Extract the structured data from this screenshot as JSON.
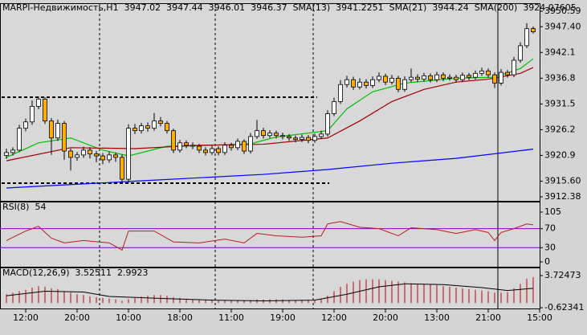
{
  "chart_data": [
    {
      "type": "candlestick",
      "title": "MARPI-Недвижимость,H1",
      "quote": [
        3947.02,
        3947.44,
        3946.01,
        3946.37
      ],
      "quote_color": "#000080",
      "up_color": "#ffffff",
      "down_color": "#ffb000",
      "open": [
        3920.9,
        3921.5,
        3922.0,
        3926.5,
        3927.8,
        3931.0,
        3932.5,
        3928.0,
        3924.5,
        3927.5,
        3921.8,
        3920.5,
        3921.0,
        3922.0,
        3921.2,
        3920.8,
        3920.0,
        3921.0,
        3920.5,
        3916.0,
        3926.5,
        3926.0,
        3927.0,
        3926.5,
        3928.0,
        3927.5,
        3926.0,
        3922.0,
        3923.5,
        3923.0,
        3922.8,
        3922.0,
        3921.5,
        3922.3,
        3921.5,
        3923.0,
        3922.5,
        3923.8,
        3921.8,
        3924.8,
        3926.0,
        3925.0,
        3925.5,
        3925.0,
        3924.8,
        3924.5,
        3924.2,
        3924.6,
        3924.0,
        3924.8,
        3925.3,
        3929.5,
        3932.0,
        3935.5,
        3936.5,
        3935.0,
        3936.0,
        3935.3,
        3936.5,
        3937.2,
        3936.0,
        3936.8,
        3934.5,
        3936.5,
        3937.0,
        3936.6,
        3937.3,
        3936.5,
        3937.5,
        3936.8,
        3937.0,
        3936.5,
        3937.4,
        3937.0,
        3937.8,
        3938.3,
        3937.5,
        3935.8,
        3938.0,
        3937.5,
        3940.5,
        3943.5,
        3947.02
      ],
      "high": [
        3922.3,
        3922.6,
        3927.2,
        3928.5,
        3932.2,
        3933.0,
        3932.9,
        3928.6,
        3928.3,
        3928.0,
        3922.3,
        3921.6,
        3922.7,
        3922.6,
        3921.8,
        3921.4,
        3921.7,
        3921.5,
        3921.1,
        3927.3,
        3927.4,
        3927.6,
        3927.7,
        3929.6,
        3928.8,
        3928.0,
        3926.4,
        3924.1,
        3924.0,
        3923.6,
        3923.3,
        3922.6,
        3922.9,
        3922.8,
        3923.6,
        3923.5,
        3924.4,
        3924.2,
        3925.5,
        3928.2,
        3926.6,
        3926.1,
        3926.0,
        3925.6,
        3925.3,
        3925.0,
        3925.2,
        3925.1,
        3925.4,
        3926.0,
        3930.2,
        3932.8,
        3936.4,
        3937.3,
        3937.1,
        3936.8,
        3936.6,
        3937.2,
        3938.0,
        3937.7,
        3937.5,
        3937.3,
        3937.2,
        3938.8,
        3937.6,
        3937.9,
        3937.8,
        3938.1,
        3938.0,
        3937.6,
        3937.5,
        3938.0,
        3937.9,
        3938.4,
        3939.0,
        3938.8,
        3938.0,
        3938.7,
        3938.5,
        3941.2,
        3944.2,
        3948.1,
        3947.44
      ],
      "low": [
        3920.2,
        3920.9,
        3921.6,
        3925.9,
        3927.2,
        3930.4,
        3927.4,
        3921.0,
        3923.9,
        3920.0,
        3917.8,
        3919.8,
        3920.4,
        3920.3,
        3919.5,
        3919.1,
        3919.4,
        3919.6,
        3915.4,
        3915.3,
        3925.3,
        3925.4,
        3925.8,
        3926.0,
        3926.9,
        3925.4,
        3921.4,
        3921.5,
        3922.4,
        3922.2,
        3921.4,
        3920.9,
        3921.0,
        3920.9,
        3921.0,
        3921.9,
        3922.0,
        3921.2,
        3921.3,
        3924.3,
        3924.4,
        3924.5,
        3924.4,
        3924.2,
        3923.9,
        3923.6,
        3923.7,
        3923.4,
        3923.5,
        3924.3,
        3924.8,
        3929.0,
        3931.5,
        3934.9,
        3934.4,
        3934.5,
        3934.7,
        3934.8,
        3936.0,
        3935.4,
        3935.5,
        3933.9,
        3934.0,
        3936.0,
        3936.0,
        3936.1,
        3935.9,
        3936.0,
        3936.2,
        3936.3,
        3935.9,
        3936.0,
        3936.4,
        3936.5,
        3937.3,
        3936.9,
        3934.8,
        3935.3,
        3936.9,
        3937.0,
        3940.0,
        3943.0,
        3946.01
      ],
      "close": [
        3921.5,
        3922.0,
        3926.5,
        3927.8,
        3931.0,
        3932.5,
        3928.0,
        3924.5,
        3927.5,
        3921.8,
        3920.5,
        3921.0,
        3922.0,
        3921.2,
        3920.8,
        3920.0,
        3921.0,
        3920.5,
        3916.0,
        3926.5,
        3926.0,
        3927.0,
        3926.5,
        3928.0,
        3927.5,
        3926.0,
        3922.0,
        3923.5,
        3923.0,
        3922.8,
        3922.0,
        3921.5,
        3922.3,
        3921.5,
        3923.0,
        3922.5,
        3923.8,
        3921.8,
        3924.8,
        3926.0,
        3925.0,
        3925.5,
        3925.0,
        3924.8,
        3924.5,
        3924.2,
        3924.6,
        3924.0,
        3924.8,
        3925.3,
        3929.5,
        3932.0,
        3935.5,
        3936.5,
        3935.0,
        3936.0,
        3935.3,
        3936.5,
        3937.2,
        3936.0,
        3936.8,
        3934.5,
        3936.5,
        3937.0,
        3936.6,
        3937.3,
        3936.5,
        3937.5,
        3936.8,
        3937.0,
        3936.5,
        3937.4,
        3937.0,
        3937.8,
        3938.3,
        3937.5,
        3935.8,
        3938.0,
        3937.5,
        3940.5,
        3943.5,
        3947.0,
        3946.37
      ],
      "series": [
        {
          "name": "SMA(13)",
          "current": 3941.2251,
          "color": "#00c000",
          "x": [
            0,
            5,
            10,
            15,
            19,
            25,
            30,
            38,
            42,
            50,
            53,
            57,
            62,
            70,
            76,
            80,
            82
          ],
          "values": [
            3920.5,
            3923.5,
            3924.5,
            3922.0,
            3920.8,
            3922.8,
            3922.9,
            3923.3,
            3924.7,
            3926.0,
            3930.5,
            3934.0,
            3935.8,
            3936.8,
            3937.0,
            3938.8,
            3940.8
          ]
        },
        {
          "name": "SMA(21)",
          "current": 3944.24,
          "color": "#a00000",
          "x": [
            0,
            10,
            20,
            30,
            40,
            50,
            55,
            60,
            65,
            70,
            75,
            80,
            82
          ],
          "values": [
            3919.8,
            3922.5,
            3922.3,
            3923.0,
            3923.2,
            3924.5,
            3928.0,
            3932.0,
            3934.5,
            3936.0,
            3936.6,
            3937.8,
            3939.0
          ]
        },
        {
          "name": "SMA(200)",
          "current": 3924.07605,
          "color": "#0000ff",
          "x": [
            0,
            20,
            40,
            50,
            60,
            70,
            82
          ],
          "values": [
            3914.2,
            3915.6,
            3917.0,
            3918.0,
            3919.3,
            3920.3,
            3922.2
          ]
        }
      ],
      "hlines": [
        3932.9,
        3915.2
      ],
      "xlim": [
        -1,
        83
      ],
      "ylim": [
        3912.38,
        3950.59
      ],
      "yticks": [
        3950.59,
        {
          "value": 3947.4,
          "label": "3947.40"
        },
        3942.1,
        3936.8,
        3931.5,
        3926.2,
        3920.9,
        {
          "value": 3915.6,
          "label": "3915.60"
        },
        3912.38
      ],
      "xticks": [
        {
          "value": 3,
          "label": "12:00"
        },
        {
          "value": 11,
          "label": "20:00"
        },
        {
          "value": 19,
          "label": "10:00"
        },
        {
          "value": 27,
          "label": "18:00"
        },
        {
          "value": 35,
          "label": "11:00"
        },
        {
          "value": 43,
          "label": "19:00"
        },
        {
          "value": 51,
          "label": "12:00"
        },
        {
          "value": 59,
          "label": "20:00"
        },
        {
          "value": 67,
          "label": "13:00"
        },
        {
          "value": 75,
          "label": "21:00"
        },
        {
          "value": 83,
          "label": "15:00"
        }
      ]
    },
    {
      "type": "line",
      "title": "RSI(8)",
      "current": 54,
      "current_color": "#c00000",
      "xlim": [
        -1,
        83
      ],
      "ylim": [
        -8.5,
        125.3
      ],
      "yticks": [
        105,
        70,
        30,
        0
      ],
      "levels": [
        70,
        30
      ],
      "level_color": "#8000c0",
      "series": [
        {
          "color": "#b02020",
          "x": [
            0,
            3,
            5,
            7,
            9,
            12,
            16,
            18,
            19,
            23,
            26,
            30,
            34,
            37,
            39,
            42,
            46,
            49,
            50,
            52,
            55,
            58,
            61,
            63,
            67,
            70,
            73,
            75,
            76,
            77,
            79,
            81,
            82
          ],
          "values": [
            45,
            65,
            75,
            50,
            40,
            45,
            40,
            25,
            65,
            65,
            42,
            40,
            48,
            40,
            60,
            55,
            52,
            55,
            80,
            85,
            73,
            70,
            55,
            72,
            68,
            60,
            68,
            62,
            45,
            62,
            70,
            80,
            78
          ]
        }
      ]
    },
    {
      "type": "macd",
      "title": "MACD(12,26,9)",
      "current": [
        3.52511,
        2.9923
      ],
      "current_colors": [
        "#000000",
        "#c00000"
      ],
      "xlim": [
        -1,
        83
      ],
      "ylim": [
        -0.73,
        4.7
      ],
      "yticks": [
        3.72473,
        -0.62341
      ],
      "histogram": {
        "color": "#c00000",
        "values": [
          1.2,
          1.4,
          1.6,
          1.8,
          2.1,
          2.3,
          2.2,
          2.0,
          1.9,
          1.6,
          1.4,
          1.2,
          1.1,
          0.9,
          0.8,
          0.7,
          0.6,
          0.5,
          0.3,
          0.5,
          0.7,
          0.9,
          1.0,
          1.1,
          1.1,
          1.0,
          0.8,
          0.7,
          0.6,
          0.5,
          0.5,
          0.4,
          0.4,
          0.3,
          0.3,
          0.3,
          0.3,
          0.3,
          0.4,
          0.5,
          0.5,
          0.5,
          0.5,
          0.5,
          0.4,
          0.4,
          0.4,
          0.4,
          0.4,
          0.5,
          1.0,
          1.6,
          2.2,
          2.6,
          2.9,
          3.1,
          3.2,
          3.2,
          3.2,
          3.1,
          3.0,
          2.9,
          2.8,
          2.7,
          2.6,
          2.6,
          2.5,
          2.4,
          2.3,
          2.2,
          2.1,
          2.0,
          1.9,
          1.8,
          1.7,
          1.6,
          1.4,
          1.4,
          1.5,
          2.0,
          2.6,
          3.3,
          3.5
        ]
      },
      "signal": {
        "color": "#000000",
        "x": [
          0,
          6,
          12,
          16,
          25,
          32,
          40,
          48,
          53,
          58,
          62,
          68,
          74,
          78,
          82
        ],
        "values": [
          1.0,
          1.6,
          1.5,
          0.9,
          0.6,
          0.4,
          0.3,
          0.4,
          1.2,
          2.2,
          2.6,
          2.5,
          2.1,
          1.7,
          2.0
        ]
      }
    }
  ]
}
